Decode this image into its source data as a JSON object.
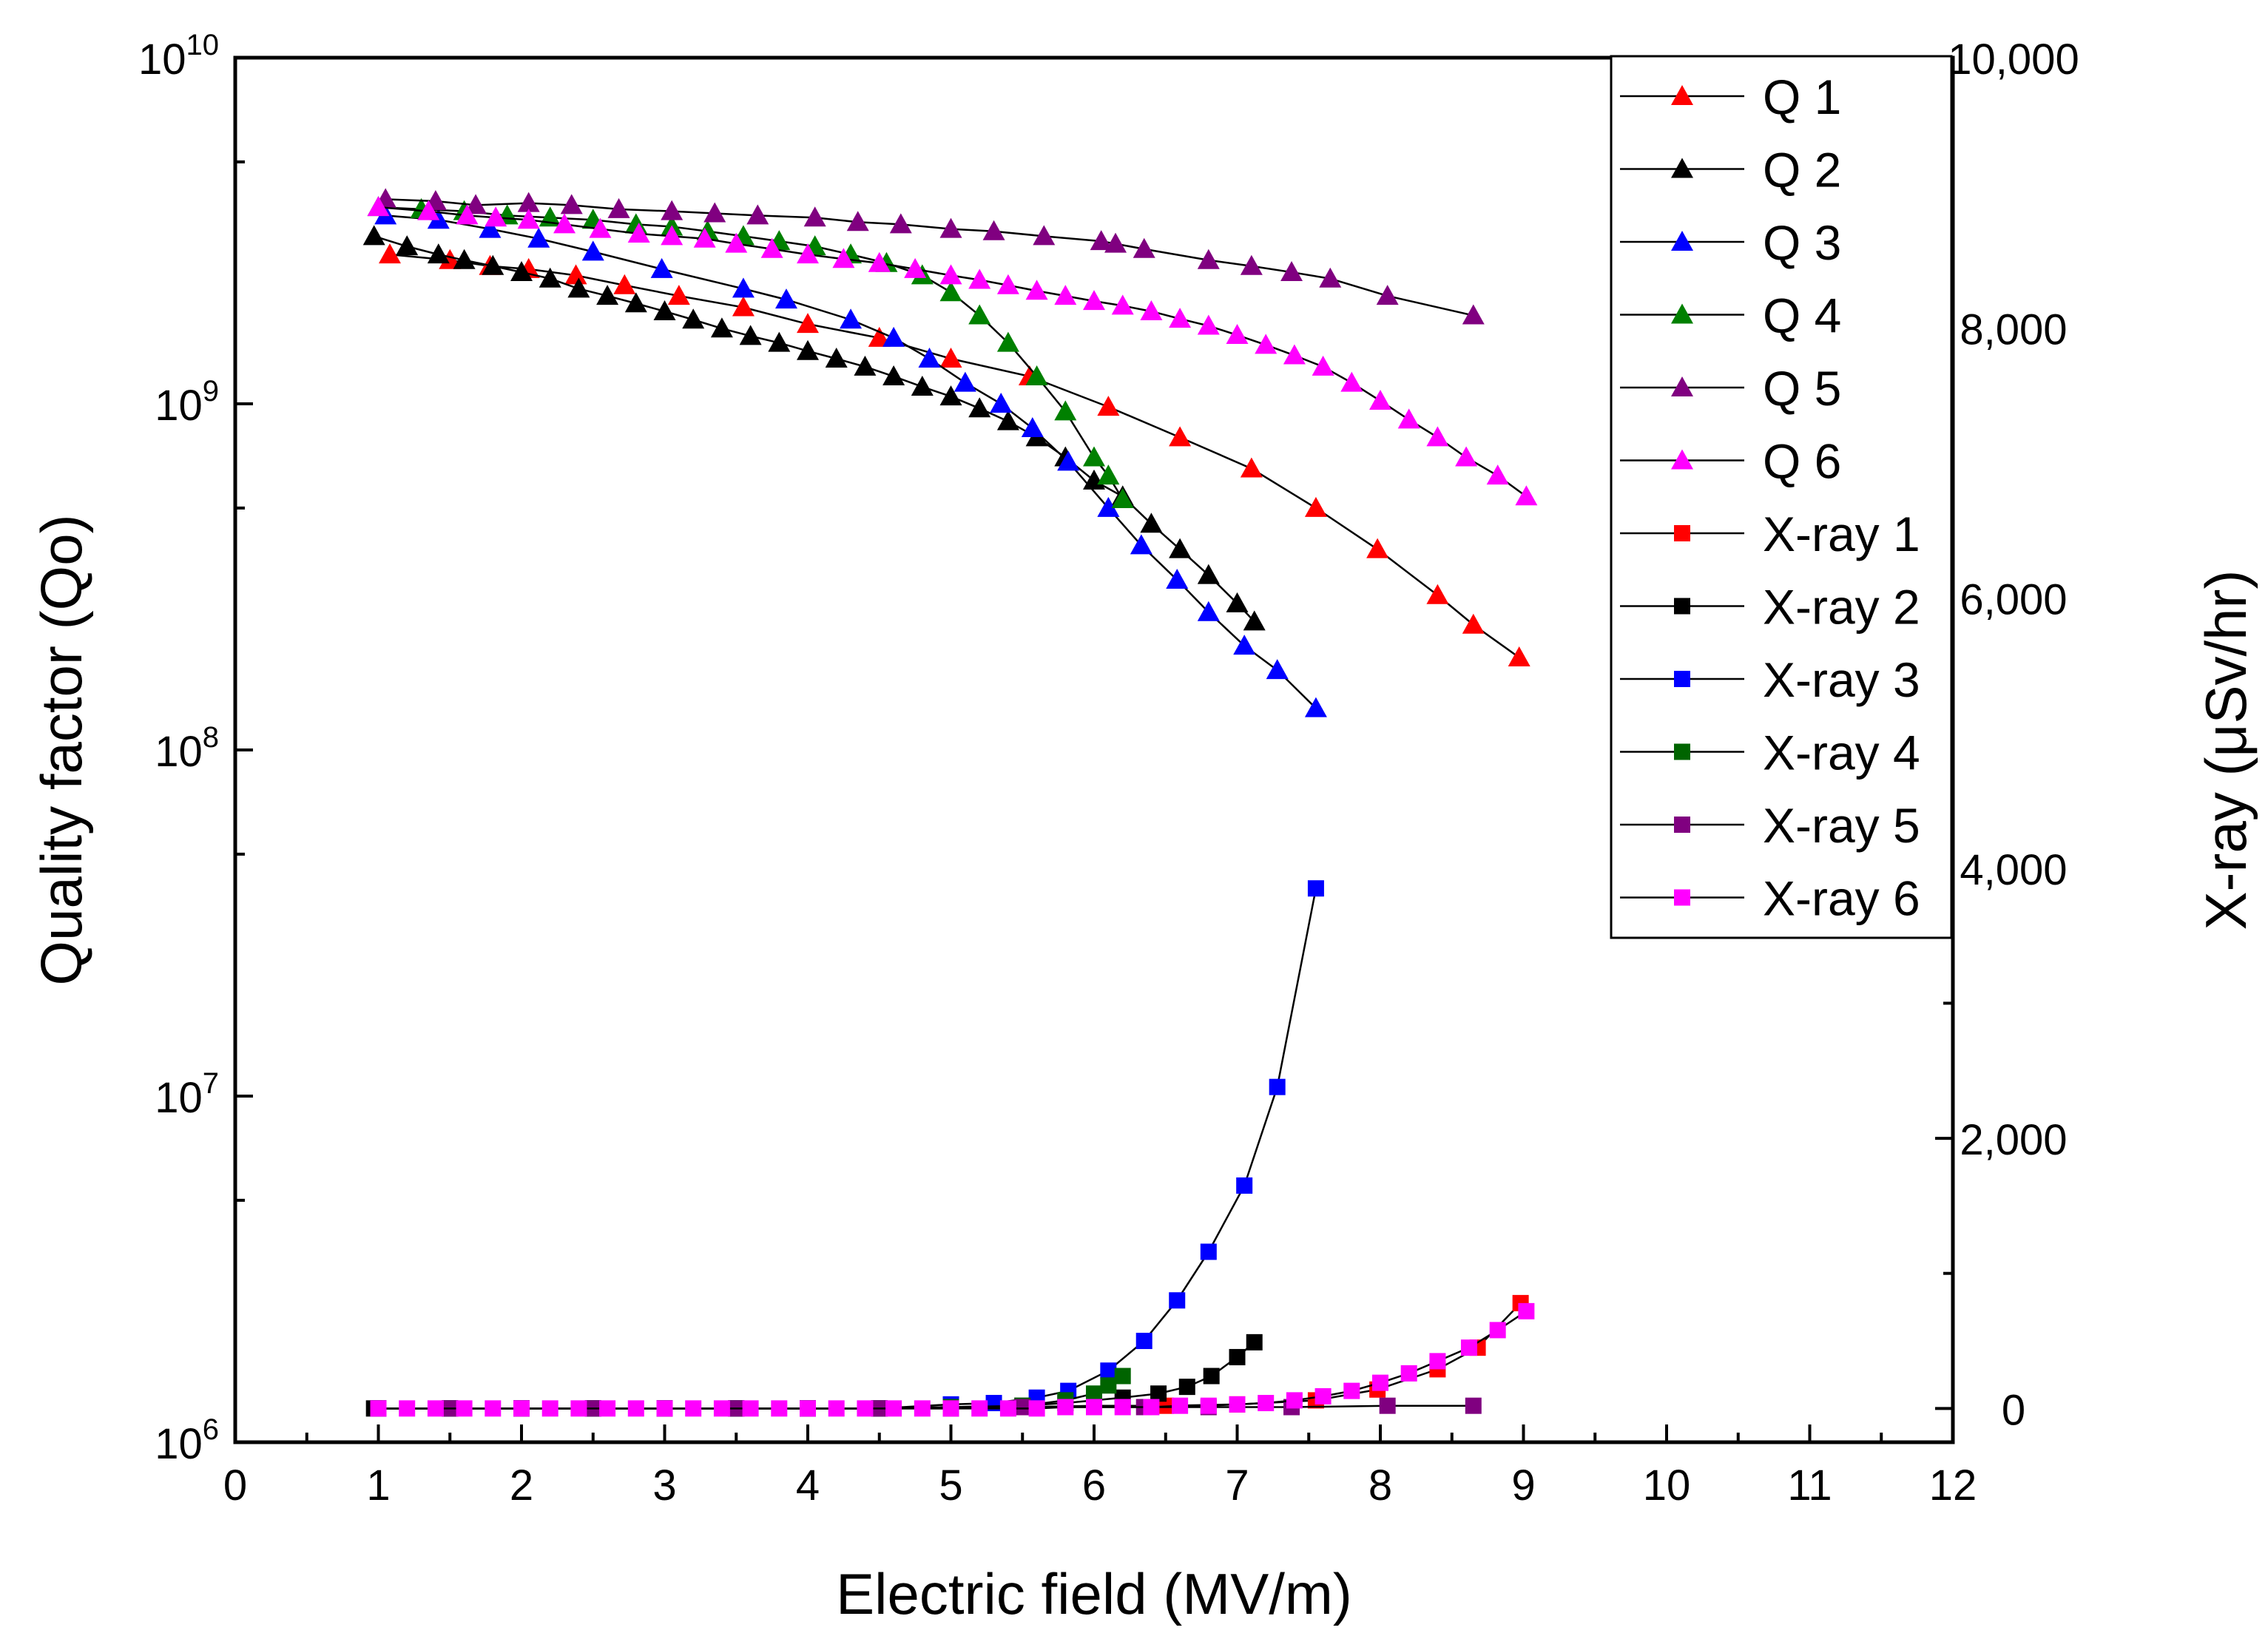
{
  "chart_data": {
    "type": "line",
    "title": "",
    "xlabel": "Electric field (MV/m)",
    "ylabel_left": "Quality factor (Qo)",
    "ylabel_right": "X-ray (μSv/hr)",
    "xlim": [
      0,
      12
    ],
    "ylim_left": [
      1000000,
      10000000000
    ],
    "ylim_right": [
      -250,
      10000
    ],
    "left_scale": "log",
    "grid": false,
    "legend_position": "top-right",
    "x_tick_labels": [
      "0",
      "1",
      "2",
      "3",
      "4",
      "5",
      "6",
      "7",
      "8",
      "9",
      "10",
      "11",
      "12"
    ],
    "y_left_tick_labels": [
      {
        "base": "10",
        "exp": "6"
      },
      {
        "base": "10",
        "exp": "7"
      },
      {
        "base": "10",
        "exp": "8"
      },
      {
        "base": "10",
        "exp": "9"
      },
      {
        "base": "10",
        "exp": "10"
      }
    ],
    "y_right_tick_labels": [
      "0",
      "2,000",
      "4,000",
      "6,000",
      "8,000",
      "10,000"
    ],
    "series": [
      {
        "name": "Q 1",
        "axis": "left",
        "marker": "triangle",
        "color": "#ff0000",
        "x": [
          1.08,
          1.5,
          1.78,
          2.05,
          2.38,
          2.72,
          3.1,
          3.55,
          4.0,
          4.5,
          5.0,
          5.55,
          6.1,
          6.6,
          7.1,
          7.55,
          7.98,
          8.4,
          8.65,
          8.97
        ],
        "y": [
          2700000000.0,
          2600000000.0,
          2500000000.0,
          2450000000.0,
          2350000000.0,
          2200000000.0,
          2050000000.0,
          1900000000.0,
          1700000000.0,
          1550000000.0,
          1350000000.0,
          1200000000.0,
          980000000.0,
          800000000.0,
          650000000.0,
          500000000.0,
          380000000.0,
          280000000.0,
          230000000.0,
          185000000.0
        ]
      },
      {
        "name": "Q 2",
        "axis": "left",
        "marker": "triangle",
        "color": "#000000",
        "x": [
          0.97,
          1.2,
          1.42,
          1.6,
          1.8,
          2.0,
          2.2,
          2.4,
          2.6,
          2.8,
          3.0,
          3.2,
          3.4,
          3.6,
          3.8,
          4.0,
          4.2,
          4.4,
          4.6,
          4.8,
          5.0,
          5.2,
          5.4,
          5.6,
          5.8,
          6.0,
          6.2,
          6.4,
          6.6,
          6.8,
          7.0,
          7.12
        ],
        "y": [
          3050000000.0,
          2850000000.0,
          2700000000.0,
          2600000000.0,
          2500000000.0,
          2400000000.0,
          2300000000.0,
          2150000000.0,
          2050000000.0,
          1950000000.0,
          1850000000.0,
          1750000000.0,
          1650000000.0,
          1570000000.0,
          1500000000.0,
          1420000000.0,
          1350000000.0,
          1280000000.0,
          1200000000.0,
          1120000000.0,
          1050000000.0,
          970000000.0,
          890000000.0,
          800000000.0,
          700000000.0,
          600000000.0,
          540000000.0,
          450000000.0,
          380000000.0,
          320000000.0,
          265000000.0,
          235000000.0
        ]
      },
      {
        "name": "Q 3",
        "axis": "left",
        "marker": "triangle",
        "color": "#0000ff",
        "x": [
          1.05,
          1.42,
          1.78,
          2.12,
          2.5,
          2.98,
          3.55,
          3.85,
          4.3,
          4.6,
          4.85,
          5.1,
          5.35,
          5.57,
          5.82,
          6.1,
          6.33,
          6.58,
          6.8,
          7.05,
          7.28,
          7.55
        ],
        "y": [
          3500000000.0,
          3400000000.0,
          3200000000.0,
          3000000000.0,
          2750000000.0,
          2450000000.0,
          2150000000.0,
          2000000000.0,
          1750000000.0,
          1550000000.0,
          1350000000.0,
          1150000000.0,
          1000000000.0,
          850000000.0,
          680000000.0,
          500000000.0,
          390000000.0,
          310000000.0,
          250000000.0,
          200000000.0,
          170000000.0,
          132000000.0
        ]
      },
      {
        "name": "Q 4",
        "axis": "left",
        "marker": "triangle",
        "color": "#008000",
        "x": [
          1.0,
          1.3,
          1.6,
          1.9,
          2.2,
          2.5,
          2.8,
          3.05,
          3.3,
          3.55,
          3.8,
          4.05,
          4.3,
          4.55,
          4.8,
          5.0,
          5.2,
          5.4,
          5.6,
          5.8,
          6.0,
          6.1,
          6.2
        ],
        "y": [
          3700000000.0,
          3650000000.0,
          3600000000.0,
          3500000000.0,
          3450000000.0,
          3400000000.0,
          3300000000.0,
          3250000000.0,
          3150000000.0,
          3050000000.0,
          2950000000.0,
          2850000000.0,
          2700000000.0,
          2550000000.0,
          2350000000.0,
          2100000000.0,
          1800000000.0,
          1500000000.0,
          1200000000.0,
          950000000.0,
          700000000.0,
          620000000.0,
          530000000.0
        ]
      },
      {
        "name": "Q 5",
        "axis": "left",
        "marker": "triangle",
        "color": "#800080",
        "x": [
          1.05,
          1.4,
          1.68,
          2.05,
          2.35,
          2.68,
          3.05,
          3.35,
          3.65,
          4.05,
          4.35,
          4.65,
          5.0,
          5.3,
          5.65,
          6.05,
          6.15,
          6.35,
          6.8,
          7.1,
          7.38,
          7.65,
          8.05,
          8.65
        ],
        "y": [
          3900000000.0,
          3850000000.0,
          3750000000.0,
          3800000000.0,
          3750000000.0,
          3650000000.0,
          3600000000.0,
          3550000000.0,
          3500000000.0,
          3450000000.0,
          3350000000.0,
          3300000000.0,
          3200000000.0,
          3150000000.0,
          3050000000.0,
          2950000000.0,
          2900000000.0,
          2800000000.0,
          2600000000.0,
          2500000000.0,
          2400000000.0,
          2300000000.0,
          2050000000.0,
          1800000000.0
        ]
      },
      {
        "name": "Q 6",
        "axis": "left",
        "marker": "triangle",
        "color": "#ff00ff",
        "x": [
          1.0,
          1.35,
          1.62,
          1.82,
          2.05,
          2.3,
          2.55,
          2.82,
          3.05,
          3.28,
          3.5,
          3.75,
          4.0,
          4.25,
          4.5,
          4.75,
          5.0,
          5.2,
          5.4,
          5.6,
          5.8,
          6.0,
          6.2,
          6.4,
          6.6,
          6.8,
          7.0,
          7.2,
          7.4,
          7.6,
          7.8,
          8.0,
          8.2,
          8.4,
          8.6,
          8.82,
          9.02
        ],
        "y": [
          3700000000.0,
          3600000000.0,
          3500000000.0,
          3450000000.0,
          3400000000.0,
          3300000000.0,
          3200000000.0,
          3100000000.0,
          3050000000.0,
          3000000000.0,
          2900000000.0,
          2800000000.0,
          2700000000.0,
          2620000000.0,
          2550000000.0,
          2450000000.0,
          2350000000.0,
          2280000000.0,
          2200000000.0,
          2120000000.0,
          2050000000.0,
          1980000000.0,
          1920000000.0,
          1850000000.0,
          1760000000.0,
          1680000000.0,
          1580000000.0,
          1480000000.0,
          1380000000.0,
          1280000000.0,
          1150000000.0,
          1020000000.0,
          900000000.0,
          800000000.0,
          700000000.0,
          620000000.0,
          540000000.0
        ]
      },
      {
        "name": "X-ray 1",
        "axis": "right",
        "marker": "square",
        "color": "#ff0000",
        "x": [
          1.0,
          1.5,
          2.0,
          2.5,
          3.0,
          3.5,
          4.0,
          4.5,
          5.0,
          5.5,
          6.0,
          6.5,
          7.0,
          7.55,
          7.98,
          8.4,
          8.68,
          8.98
        ],
        "y": [
          0,
          0,
          0,
          0,
          0,
          0,
          0,
          0,
          10,
          10,
          20,
          20,
          30,
          60,
          140,
          290,
          450,
          780
        ]
      },
      {
        "name": "X-ray 2",
        "axis": "right",
        "marker": "square",
        "color": "#000000",
        "x": [
          0.97,
          1.5,
          2.0,
          2.5,
          3.0,
          3.5,
          4.0,
          4.5,
          5.0,
          5.5,
          5.8,
          6.0,
          6.2,
          6.45,
          6.65,
          6.82,
          7.0,
          7.12
        ],
        "y": [
          0,
          0,
          0,
          0,
          0,
          0,
          0,
          0,
          10,
          20,
          40,
          60,
          80,
          110,
          160,
          240,
          380,
          490
        ]
      },
      {
        "name": "X-ray 3",
        "axis": "right",
        "marker": "square",
        "color": "#0000ff",
        "x": [
          1.0,
          1.5,
          2.0,
          2.5,
          3.0,
          3.5,
          4.0,
          4.5,
          5.0,
          5.3,
          5.6,
          5.82,
          6.1,
          6.35,
          6.58,
          6.8,
          7.05,
          7.28,
          7.55
        ],
        "y": [
          0,
          0,
          0,
          0,
          0,
          0,
          0,
          0,
          30,
          40,
          80,
          130,
          280,
          500,
          800,
          1160,
          1650,
          2380,
          3850
        ]
      },
      {
        "name": "X-ray 4",
        "axis": "right",
        "marker": "square",
        "color": "#006400",
        "x": [
          1.0,
          1.5,
          2.0,
          2.5,
          3.0,
          3.5,
          4.0,
          4.5,
          5.0,
          5.5,
          5.8,
          6.0,
          6.1,
          6.2
        ],
        "y": [
          0,
          0,
          0,
          0,
          0,
          0,
          0,
          0,
          10,
          20,
          60,
          110,
          170,
          240
        ]
      },
      {
        "name": "X-ray 5",
        "axis": "right",
        "marker": "square",
        "color": "#800080",
        "x": [
          1.0,
          1.5,
          2.0,
          2.5,
          3.0,
          3.5,
          4.0,
          4.5,
          5.0,
          5.5,
          6.0,
          6.35,
          6.8,
          7.38,
          8.05,
          8.65
        ],
        "y": [
          0,
          0,
          0,
          0,
          0,
          0,
          0,
          0,
          0,
          10,
          10,
          10,
          10,
          10,
          20,
          20
        ]
      },
      {
        "name": "X-ray 6",
        "axis": "right",
        "marker": "square",
        "color": "#ff00ff",
        "x": [
          1.0,
          1.2,
          1.4,
          1.6,
          1.8,
          2.0,
          2.2,
          2.4,
          2.6,
          2.8,
          3.0,
          3.2,
          3.4,
          3.6,
          3.8,
          4.0,
          4.2,
          4.4,
          4.6,
          4.8,
          5.0,
          5.2,
          5.4,
          5.6,
          5.8,
          6.0,
          6.2,
          6.4,
          6.6,
          6.8,
          7.0,
          7.2,
          7.4,
          7.6,
          7.8,
          8.0,
          8.2,
          8.4,
          8.62,
          8.82,
          9.02
        ],
        "y": [
          0,
          0,
          0,
          0,
          0,
          0,
          0,
          0,
          0,
          0,
          0,
          0,
          0,
          0,
          0,
          0,
          0,
          0,
          0,
          0,
          0,
          0,
          0,
          0,
          10,
          10,
          10,
          10,
          20,
          20,
          30,
          40,
          60,
          90,
          130,
          190,
          260,
          350,
          450,
          580,
          720
        ]
      }
    ]
  }
}
